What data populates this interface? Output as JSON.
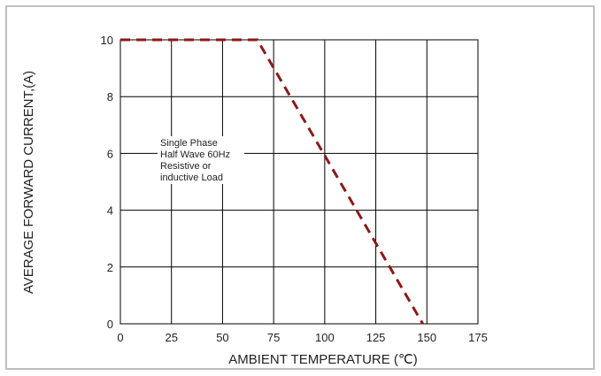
{
  "chart_data": {
    "type": "line",
    "title": "",
    "xlabel": "AMBIENT TEMPERATURE (℃)",
    "ylabel": "AVERAGE FORWARD CURRENT,(A)",
    "xlim": [
      0,
      175
    ],
    "ylim": [
      0,
      10
    ],
    "x_ticks": [
      "0",
      "25",
      "50",
      "75",
      "100",
      "125",
      "150",
      "175"
    ],
    "y_ticks": [
      "0",
      "2",
      "4",
      "6",
      "8",
      "10"
    ],
    "grid": true,
    "series": [
      {
        "style": "dashed",
        "color": "#8b1a1a",
        "points": [
          [
            0,
            10
          ],
          [
            67,
            10
          ],
          [
            148,
            0
          ]
        ]
      }
    ],
    "annotation": [
      "Single Phase",
      "Half Wave 60Hz",
      "Resistive or",
      "inductive Load"
    ]
  }
}
